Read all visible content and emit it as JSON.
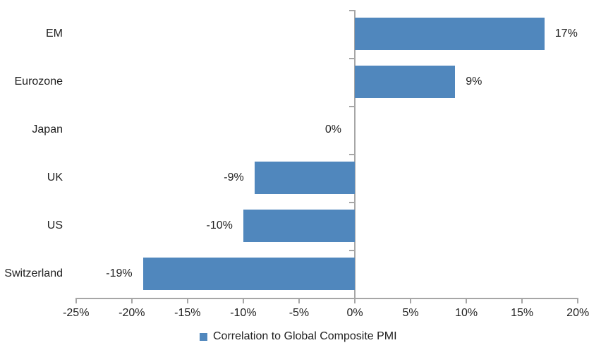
{
  "chart_data": {
    "type": "bar",
    "orientation": "horizontal",
    "title": "",
    "xlabel": "",
    "ylabel": "",
    "categories": [
      "EM",
      "Eurozone",
      "Japan",
      "UK",
      "US",
      "Switzerland"
    ],
    "values": [
      17,
      9,
      0,
      -9,
      -10,
      -19
    ],
    "value_labels": [
      "17%",
      "9%",
      "0%",
      "-9%",
      "-10%",
      "-19%"
    ],
    "xlim": [
      -25,
      20
    ],
    "x_tick_step": 5,
    "x_ticks": [
      -25,
      -20,
      -15,
      -10,
      -5,
      0,
      5,
      10,
      15,
      20
    ],
    "x_tick_labels": [
      "-25%",
      "-20%",
      "-15%",
      "-10%",
      "-5%",
      "0%",
      "5%",
      "10%",
      "15%",
      "20%"
    ],
    "grid": false,
    "legend_position": "bottom-center",
    "legend": "Correlation to Global Composite PMI",
    "colors": {
      "bar": "#5087BD",
      "axis": "#A6A6A6",
      "text": "#1f1f1f",
      "background": "#ffffff"
    }
  }
}
